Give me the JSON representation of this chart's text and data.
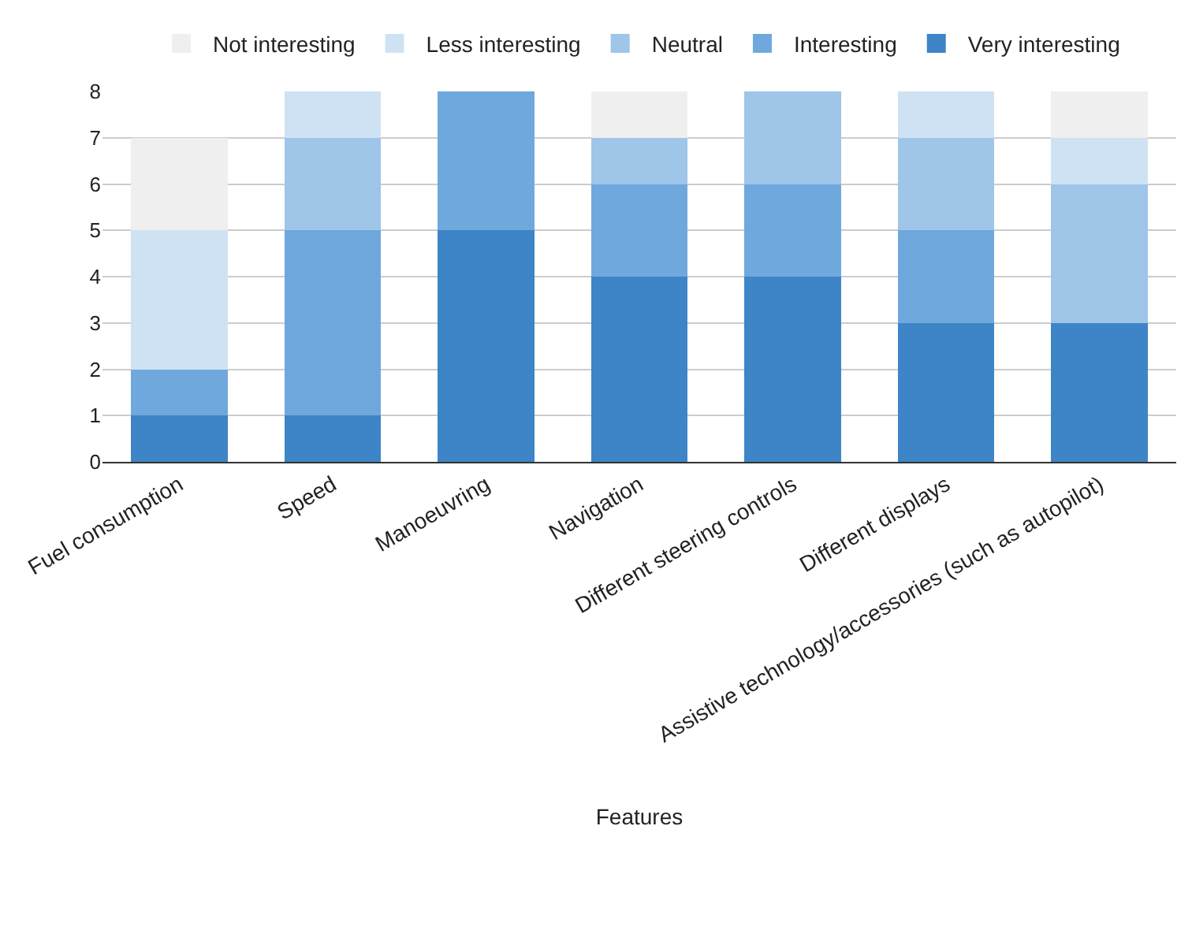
{
  "chart_data": {
    "type": "bar",
    "stacked": true,
    "xlabel": "Features",
    "categories": [
      "Fuel consumption",
      "Speed",
      "Manoeuvring",
      "Navigation",
      "Different steering controls",
      "Different displays",
      "Assistive technology/accessories (such as autopilot)"
    ],
    "series": [
      {
        "name": "Very interesting",
        "color": "#3d85c6",
        "values": [
          1,
          1,
          5,
          4,
          4,
          3,
          3
        ]
      },
      {
        "name": "Interesting",
        "color": "#6fa8dc",
        "values": [
          1,
          4,
          3,
          2,
          2,
          2,
          0
        ]
      },
      {
        "name": "Neutral",
        "color": "#9fc5e8",
        "values": [
          0,
          2,
          0,
          1,
          2,
          2,
          3
        ]
      },
      {
        "name": "Less interesting",
        "color": "#cfe2f3",
        "values": [
          3,
          1,
          0,
          0,
          0,
          1,
          1
        ]
      },
      {
        "name": "Not interesting",
        "color": "#efefef",
        "values": [
          2,
          0,
          0,
          1,
          0,
          0,
          1
        ]
      }
    ],
    "ylim": [
      0,
      8
    ],
    "yticks": [
      0,
      1,
      2,
      3,
      4,
      5,
      6,
      7,
      8
    ],
    "grid": "y",
    "legend": "top"
  }
}
